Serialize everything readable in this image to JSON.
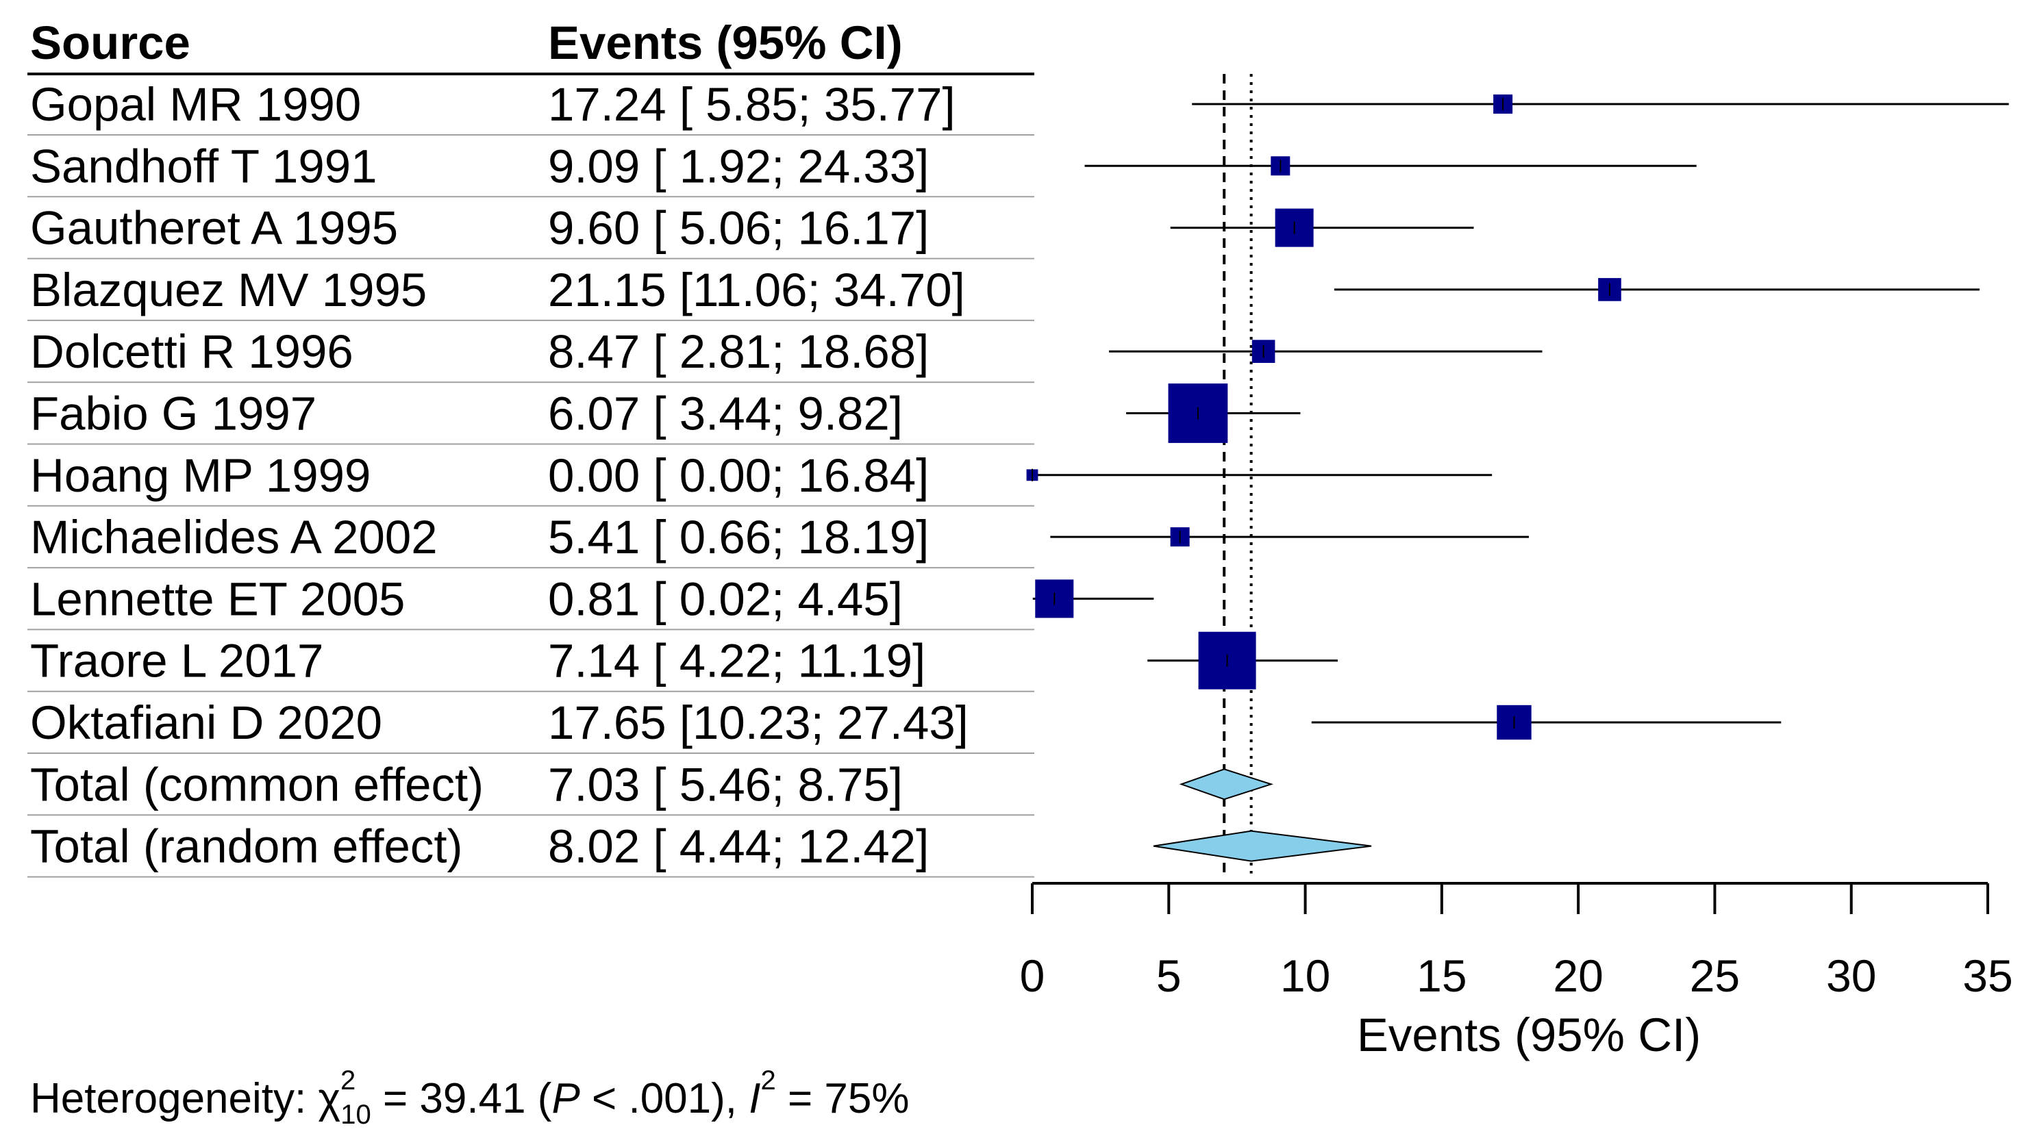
{
  "chart_data": {
    "type": "forest",
    "columns": {
      "source": "Source",
      "events": "Events (95% CI)"
    },
    "studies": [
      {
        "source": "Gopal MR 1990",
        "label": "17.24 [ 5.85; 35.77]",
        "est": 17.24,
        "lo": 5.85,
        "hi": 35.77,
        "weight": 1.0
      },
      {
        "source": "Sandhoff T 1991",
        "label": "9.09 [ 1.92; 24.33]",
        "est": 9.09,
        "lo": 1.92,
        "hi": 24.33,
        "weight": 1.0
      },
      {
        "source": "Gautheret A 1995",
        "label": "9.60 [ 5.06; 16.17]",
        "est": 9.6,
        "lo": 5.06,
        "hi": 16.17,
        "weight": 2.0
      },
      {
        "source": "Blazquez MV 1995",
        "label": "21.15 [11.06; 34.70]",
        "est": 21.15,
        "lo": 11.06,
        "hi": 34.7,
        "weight": 1.2
      },
      {
        "source": "Dolcetti R 1996",
        "label": "8.47 [ 2.81; 18.68]",
        "est": 8.47,
        "lo": 2.81,
        "hi": 18.68,
        "weight": 1.2
      },
      {
        "source": "Fabio G 1997",
        "label": "6.07 [ 3.44;  9.82]",
        "est": 6.07,
        "lo": 3.44,
        "hi": 9.82,
        "weight": 3.1
      },
      {
        "source": "Hoang MP 1999",
        "label": "0.00 [ 0.00; 16.84]",
        "est": 0.0,
        "lo": 0.0,
        "hi": 16.84,
        "weight": 0.6
      },
      {
        "source": "Michaelides A 2002",
        "label": "5.41 [ 0.66; 18.19]",
        "est": 5.41,
        "lo": 0.66,
        "hi": 18.19,
        "weight": 1.0
      },
      {
        "source": "Lennette ET 2005",
        "label": "0.81 [ 0.02;  4.45]",
        "est": 0.81,
        "lo": 0.02,
        "hi": 4.45,
        "weight": 2.0
      },
      {
        "source": "Traore L 2017",
        "label": "7.14 [ 4.22; 11.19]",
        "est": 7.14,
        "lo": 4.22,
        "hi": 11.19,
        "weight": 3.0
      },
      {
        "source": "Oktafiani D 2020",
        "label": "17.65 [10.23; 27.43]",
        "est": 17.65,
        "lo": 10.23,
        "hi": 27.43,
        "weight": 1.8
      }
    ],
    "pooled": [
      {
        "source": "Total (common effect)",
        "label": "7.03 [ 5.46;  8.75]",
        "est": 7.03,
        "lo": 5.46,
        "hi": 8.75
      },
      {
        "source": "Total (random effect)",
        "label": "8.02 [ 4.44; 12.42]",
        "est": 8.02,
        "lo": 4.44,
        "hi": 12.42
      }
    ],
    "xlim": [
      0,
      35
    ],
    "xticks": [
      0,
      5,
      10,
      15,
      20,
      25,
      30,
      35
    ],
    "xlabel": "Events (95% CI)",
    "reference_lines": {
      "common_effect": 7.03,
      "random_effect": 8.02
    },
    "heterogeneity": {
      "prefix": "Heterogeneity: ",
      "chi": "χ",
      "chi_sup": "2",
      "chi_sub": "10",
      "chi_value": " = 39.41 (",
      "p_symbol": "P",
      "p_value": " < .001), ",
      "i_symbol": "I",
      "i_sup": "2",
      "i_value": " = 75%"
    },
    "colors": {
      "box": "#00008b",
      "diamond": "#87ceeb",
      "line": "#000000"
    }
  }
}
